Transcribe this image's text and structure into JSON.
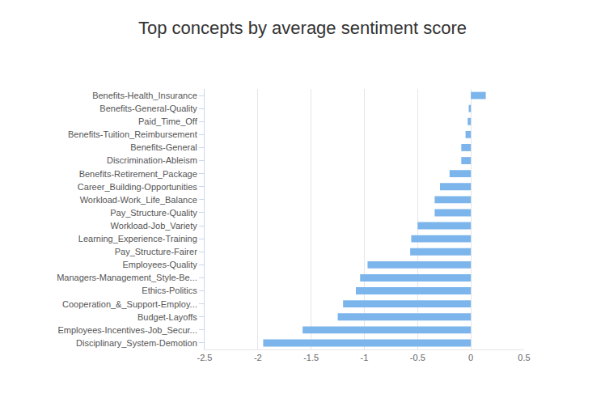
{
  "chart_data": {
    "type": "bar",
    "orientation": "horizontal",
    "title": "Top concepts by average sentiment score",
    "categories": [
      "Benefits-Health_Insurance",
      "Benefits-General-Quality",
      "Paid_Time_Off",
      "Benefits-Tuition_Reimbursement",
      "Benefits-General",
      "Discrimination-Ableism",
      "Benefits-Retirement_Package",
      "Career_Building-Opportunities",
      "Workload-Work_Life_Balance",
      "Pay_Structure-Quality",
      "Workload-Job_Variety",
      "Learning_Experience-Training",
      "Pay_Structure-Fairer",
      "Employees-Quality",
      "Managers-Management_Style-Be...",
      "Ethics-Politics",
      "Cooperation_&_Support-Employ...",
      "Budget-Layoffs",
      "Employees-Incentives-Job_Secur...",
      "Disciplinary_System-Demotion"
    ],
    "values": [
      0.14,
      -0.02,
      -0.03,
      -0.05,
      -0.09,
      -0.09,
      -0.2,
      -0.29,
      -0.34,
      -0.34,
      -0.5,
      -0.56,
      -0.57,
      -0.97,
      -1.04,
      -1.08,
      -1.2,
      -1.25,
      -1.58,
      -1.95
    ],
    "color": "#7cb5ec",
    "xlim": [
      -2.5,
      0.5
    ],
    "xticks": [
      -2.5,
      -2,
      -1.5,
      -1,
      -0.5,
      0,
      0.5
    ],
    "grid": true
  }
}
